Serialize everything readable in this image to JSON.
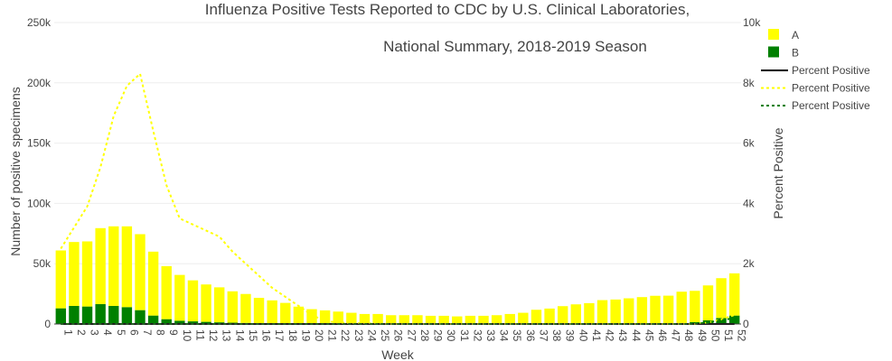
{
  "chart_data": {
    "type": "bar",
    "title_line1": "Influenza Positive Tests Reported to CDC by U.S. Clinical Laboratories,",
    "title_line2": "National Summary, 2018-2019 Season",
    "xlabel": "Week",
    "ylabel": "Number of positive specimens",
    "y2label": "Percent Positive",
    "categories": [
      "1",
      "2",
      "3",
      "4",
      "5",
      "6",
      "7",
      "8",
      "9",
      "10",
      "11",
      "12",
      "13",
      "14",
      "15",
      "16",
      "17",
      "18",
      "19",
      "20",
      "21",
      "22",
      "23",
      "24",
      "25",
      "26",
      "27",
      "28",
      "29",
      "30",
      "31",
      "32",
      "33",
      "34",
      "35",
      "36",
      "37",
      "38",
      "39",
      "40",
      "41",
      "42",
      "43",
      "44",
      "45",
      "46",
      "47",
      "48",
      "49",
      "50",
      "51",
      "52"
    ],
    "ylim": [
      0,
      250000
    ],
    "y2lim": [
      0,
      10000
    ],
    "yticks": [
      0,
      50000,
      100000,
      150000,
      200000,
      250000
    ],
    "ytick_labels": [
      "0",
      "50k",
      "100k",
      "150k",
      "200k",
      "250k"
    ],
    "y2ticks": [
      0,
      2000,
      4000,
      6000,
      8000,
      10000
    ],
    "y2tick_labels": [
      "0",
      "2k",
      "4k",
      "6k",
      "8k",
      "10k"
    ],
    "grid": true,
    "legend_position": "top-right",
    "series": [
      {
        "name": "A",
        "kind": "bar",
        "color": "#ffff00",
        "values": [
          48000,
          53000,
          54000,
          63000,
          66000,
          67000,
          63000,
          53000,
          44000,
          38000,
          34000,
          31000,
          29000,
          26000,
          24000,
          21000,
          19000,
          17000,
          14000,
          12000,
          11000,
          10000,
          9000,
          8000,
          8000,
          7000,
          7000,
          7000,
          6500,
          6500,
          6000,
          6500,
          6500,
          7000,
          8000,
          9000,
          11500,
          12500,
          14500,
          16000,
          17000,
          19500,
          20000,
          21000,
          22000,
          23000,
          23000,
          26000,
          26000,
          29000,
          33000,
          35000
        ]
      },
      {
        "name": "B",
        "kind": "bar",
        "color": "#008000",
        "values": [
          13000,
          15000,
          14500,
          16500,
          15000,
          14000,
          11500,
          7000,
          4000,
          2700,
          2200,
          1800,
          1400,
          1100,
          900,
          700,
          600,
          500,
          400,
          300,
          300,
          300,
          300,
          300,
          300,
          300,
          300,
          300,
          300,
          300,
          300,
          300,
          300,
          300,
          300,
          300,
          300,
          300,
          300,
          300,
          300,
          300,
          300,
          300,
          300,
          400,
          500,
          800,
          1500,
          3000,
          5000,
          7000
        ]
      },
      {
        "name": "Percent Positive",
        "kind": "line",
        "color": "#000000",
        "dash": "solid",
        "values": [
          0,
          0,
          0,
          0,
          0,
          0,
          0,
          0,
          0,
          0,
          0,
          0,
          0,
          0,
          0,
          0,
          0,
          0,
          0,
          0,
          0,
          0,
          0,
          0,
          0,
          0,
          0,
          0,
          0,
          0,
          0,
          0,
          0,
          0,
          0,
          0,
          0,
          0,
          0,
          0,
          0,
          0,
          0,
          0,
          0,
          0,
          0,
          0,
          0,
          0,
          0,
          0
        ]
      },
      {
        "name": "Percent Positive",
        "kind": "line",
        "color": "#ffff00",
        "dash": "dot",
        "values": [
          2500,
          3200,
          3900,
          5200,
          6900,
          7900,
          8300,
          6400,
          4600,
          3500,
          3300,
          3100,
          2900,
          2400,
          2000,
          1600,
          1200,
          900,
          600,
          300,
          100,
          50,
          30,
          20,
          10,
          0,
          0,
          0,
          0,
          0,
          0,
          0,
          0,
          0,
          0,
          0,
          0,
          0,
          0,
          0,
          0,
          0,
          0,
          0,
          0,
          0,
          0,
          0,
          0,
          50,
          150,
          300
        ]
      },
      {
        "name": "Percent Positive",
        "kind": "line",
        "color": "#008000",
        "dash": "dot",
        "values": [
          0,
          0,
          0,
          0,
          0,
          0,
          0,
          0,
          0,
          0,
          0,
          0,
          0,
          0,
          0,
          0,
          0,
          0,
          0,
          0,
          0,
          0,
          0,
          0,
          0,
          0,
          0,
          0,
          0,
          0,
          0,
          0,
          0,
          0,
          0,
          0,
          0,
          0,
          0,
          0,
          0,
          0,
          0,
          0,
          0,
          0,
          0,
          0,
          0,
          50,
          120,
          200
        ]
      }
    ]
  }
}
